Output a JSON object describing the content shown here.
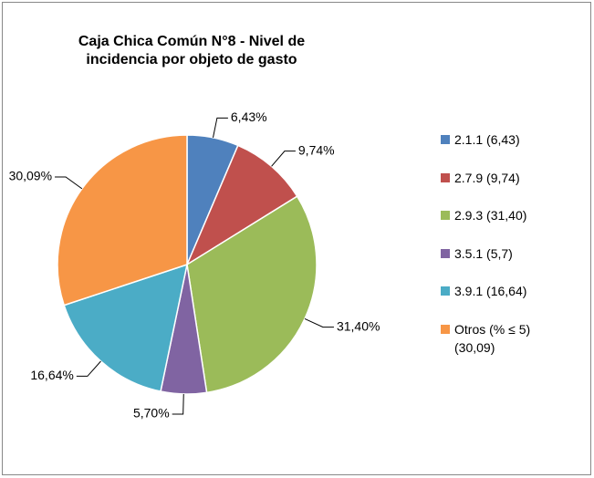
{
  "chart_data": {
    "type": "pie",
    "title": "Caja Chica Común N°8 - Nivel de incidencia por objeto de gasto",
    "categories": [
      "2.1.1 (6,43)",
      "2.7.9 (9,74)",
      "2.9.3 (31,40)",
      "3.5.1 (5,7)",
      "3.9.1 (16,64)",
      "Otros (% ≤ 5) (30,09)"
    ],
    "values": [
      6.43,
      9.74,
      31.4,
      5.7,
      16.64,
      30.09
    ],
    "value_labels": [
      "6,43%",
      "9,74%",
      "31,40%",
      "5,70%",
      "16,64%",
      "30,09%"
    ],
    "colors": [
      "#4f81bd",
      "#c0504d",
      "#9bbb59",
      "#8064a2",
      "#4bacc6",
      "#f79646"
    ],
    "legend": "right"
  }
}
